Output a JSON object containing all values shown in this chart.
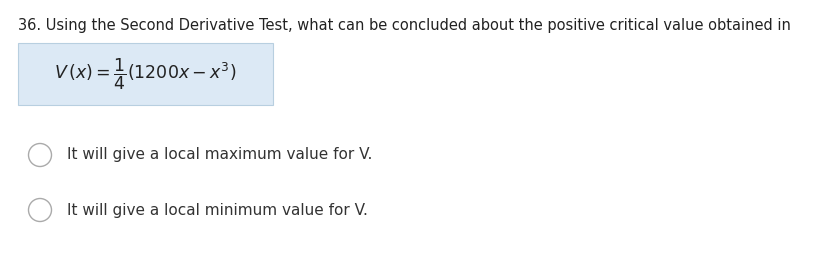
{
  "question_number": "36.",
  "question_text": "Using the Second Derivative Test, what can be concluded about the positive critical value obtained in",
  "formula_text": "$V\\,(x) = \\dfrac{1}{4}(1200x - x^3)$",
  "option1": "It will give a local maximum value for V.",
  "option2": "It will give a local minimum value for V.",
  "bg_color": "#ffffff",
  "formula_bg_color": "#dce9f5",
  "formula_border_color": "#b8cfe0",
  "text_color": "#222222",
  "option_color": "#333333",
  "font_size_question": 10.5,
  "font_size_formula": 12.5,
  "font_size_option": 11,
  "circle_edge_color": "#aaaaaa",
  "circle_face_color": "#ffffff",
  "fig_width": 8.36,
  "fig_height": 2.58,
  "dpi": 100
}
